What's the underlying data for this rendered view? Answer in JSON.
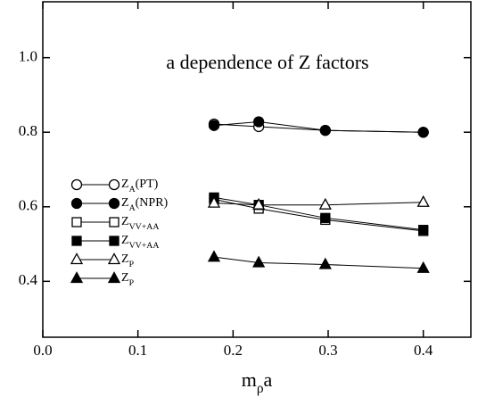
{
  "chart_data": {
    "type": "line",
    "title": "a dependence of Z factors",
    "x_label": "mρa",
    "xlim": [
      0,
      0.45
    ],
    "ylim": [
      0.25,
      1.15
    ],
    "xticks": [
      {
        "value": 0,
        "label": "0.0"
      },
      0.1,
      0.2,
      0.3,
      0.4
    ],
    "yticks": [
      0.4,
      0.6,
      0.8,
      {
        "value": 1,
        "label": "1.0"
      }
    ],
    "x": [
      0.18,
      0.227,
      0.297,
      0.4
    ],
    "series": [
      {
        "name": "ZA(PT)",
        "color": "#000000",
        "marker": "circle",
        "filled": false,
        "values": [
          0.822,
          0.815,
          0.805,
          0.8
        ]
      },
      {
        "name": "ZA(NPR)",
        "color": "#000000",
        "marker": "circle",
        "filled": true,
        "values": [
          0.818,
          0.828,
          0.805,
          0.8
        ]
      },
      {
        "name": "ZVV+AA",
        "color": "#000000",
        "marker": "square",
        "filled": false,
        "values": [
          0.62,
          0.595,
          0.565,
          0.535
        ]
      },
      {
        "name": "ZVV+AA",
        "color": "#000000",
        "marker": "square",
        "filled": true,
        "values": [
          0.625,
          0.605,
          0.57,
          0.538
        ]
      },
      {
        "name": "ZP",
        "color": "#000000",
        "marker": "triangle",
        "filled": false,
        "values": [
          0.61,
          0.605,
          0.605,
          0.612
        ]
      },
      {
        "name": "ZP",
        "color": "#000000",
        "marker": "triangle",
        "filled": true,
        "values": [
          0.465,
          0.45,
          0.445,
          0.435
        ]
      }
    ]
  }
}
